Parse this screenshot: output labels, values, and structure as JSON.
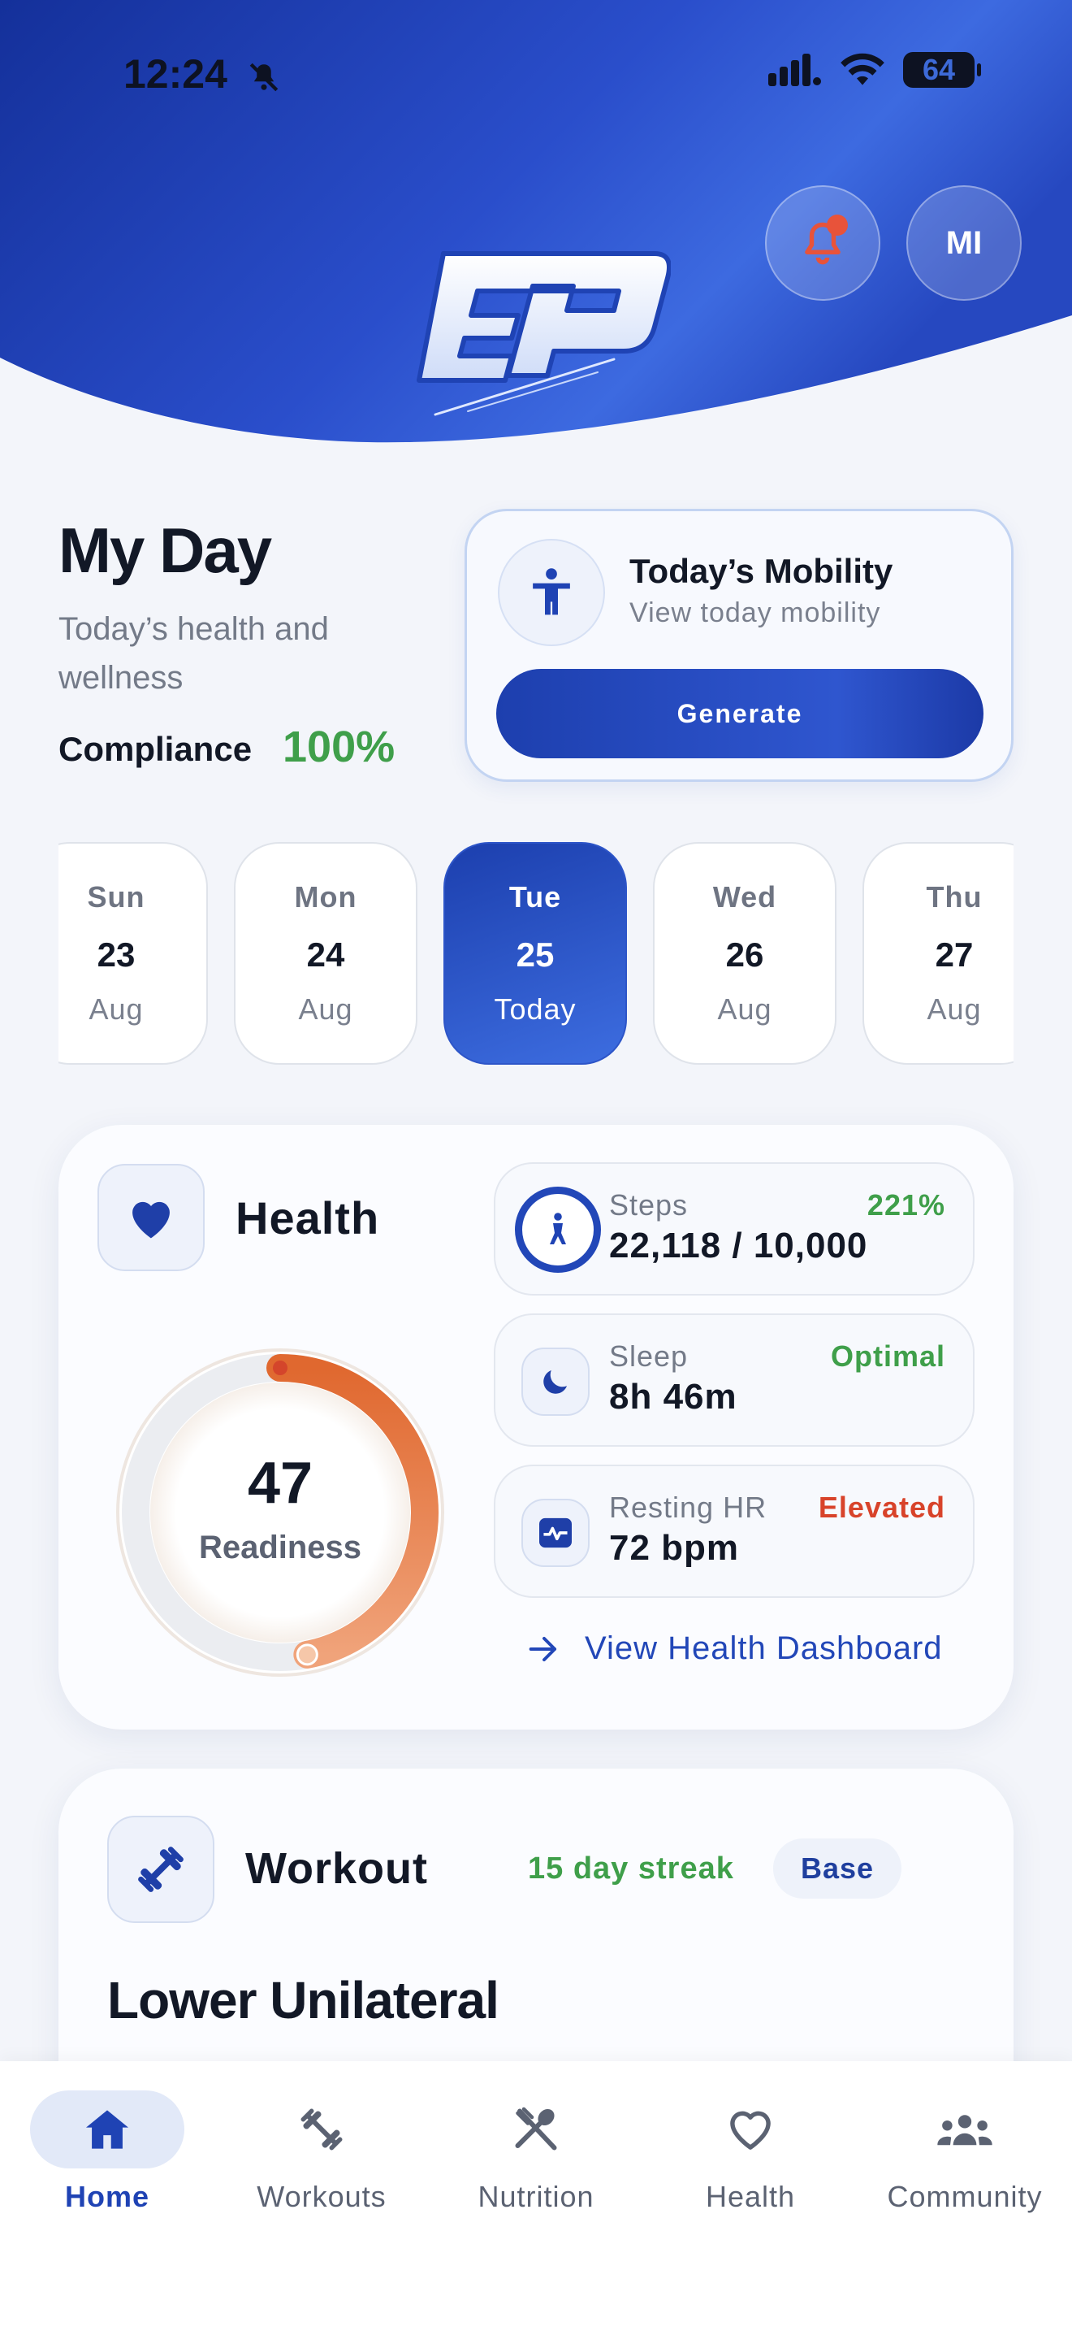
{
  "status_bar": {
    "time": "12:24",
    "battery": "64"
  },
  "header": {
    "logo_text": "EP",
    "avatar_initials": "MI",
    "colors": {
      "brand_dark": "#1a35a8",
      "brand_light": "#3d6ae0",
      "notification_dot": "#e8533a"
    }
  },
  "my_day": {
    "title": "My Day",
    "subtitle": "Today’s health and wellness",
    "compliance_label": "Compliance",
    "compliance_value": "100%"
  },
  "mobility": {
    "icon": "person-stretch-icon",
    "title": "Today’s Mobility",
    "subtitle": "View today mobility",
    "button": "Generate"
  },
  "days": [
    {
      "name": "Sun",
      "num": "23",
      "sub": "Aug",
      "active": false
    },
    {
      "name": "Mon",
      "num": "24",
      "sub": "Aug",
      "active": false
    },
    {
      "name": "Tue",
      "num": "25",
      "sub": "Today",
      "active": true
    },
    {
      "name": "Wed",
      "num": "26",
      "sub": "Aug",
      "active": false
    },
    {
      "name": "Thu",
      "num": "27",
      "sub": "Aug",
      "active": false
    }
  ],
  "health": {
    "title": "Health",
    "readiness_value": "47",
    "readiness_label": "Readiness",
    "readiness_fraction": 0.47,
    "metrics": {
      "steps": {
        "label": "Steps",
        "value": "22,118 / 10,000",
        "badge": "221%"
      },
      "sleep": {
        "label": "Sleep",
        "value": "8h 46m",
        "badge": "Optimal"
      },
      "hr": {
        "label": "Resting HR",
        "value": "72 bpm",
        "badge": "Elevated"
      }
    },
    "link": "View Health Dashboard"
  },
  "workout": {
    "title": "Workout",
    "streak": "15 day streak",
    "badge": "Base",
    "name": "Lower Unilateral"
  },
  "nav": [
    {
      "label": "Home",
      "icon": "home-icon",
      "active": true
    },
    {
      "label": "Workouts",
      "icon": "dumbbell-icon",
      "active": false
    },
    {
      "label": "Nutrition",
      "icon": "fork-spoon-icon",
      "active": false
    },
    {
      "label": "Health",
      "icon": "heart-icon",
      "active": false
    },
    {
      "label": "Community",
      "icon": "people-icon",
      "active": false
    }
  ]
}
